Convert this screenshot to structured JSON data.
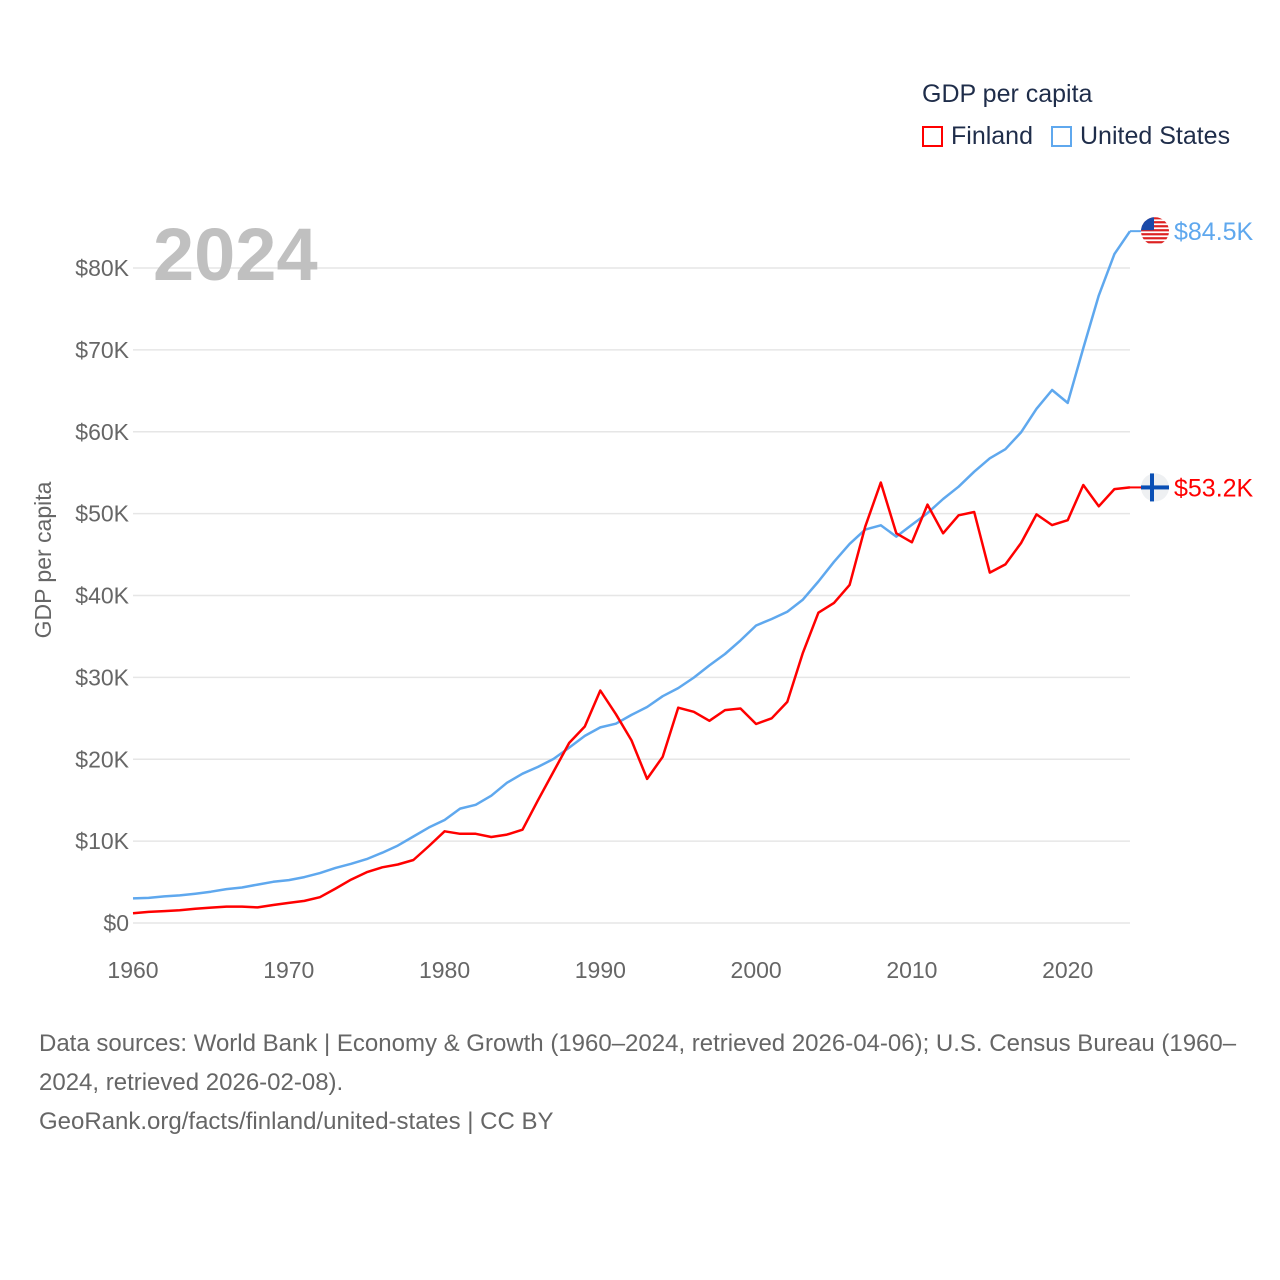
{
  "chart_data": {
    "type": "line",
    "title": "GDP per capita",
    "year_label": "2024",
    "xlabel": "",
    "ylabel": "GDP per capita",
    "xlim": [
      1960,
      2024
    ],
    "ylim": [
      0,
      80000
    ],
    "grid": true,
    "legend_placement": "top-right",
    "x_ticks": [
      "1960",
      "1970",
      "1980",
      "1990",
      "2000",
      "2010",
      "2020"
    ],
    "x_tick_values": [
      1960,
      1970,
      1980,
      1990,
      2000,
      2010,
      2020
    ],
    "y_ticks": [
      "$0",
      "$10K",
      "$20K",
      "$30K",
      "$40K",
      "$50K",
      "$60K",
      "$70K",
      "$80K"
    ],
    "y_tick_values": [
      0,
      10000,
      20000,
      30000,
      40000,
      50000,
      60000,
      70000,
      80000
    ],
    "x": [
      1960,
      1961,
      1962,
      1963,
      1964,
      1965,
      1966,
      1967,
      1968,
      1969,
      1970,
      1971,
      1972,
      1973,
      1974,
      1975,
      1976,
      1977,
      1978,
      1979,
      1980,
      1981,
      1982,
      1983,
      1984,
      1985,
      1986,
      1987,
      1988,
      1989,
      1990,
      1991,
      1992,
      1993,
      1994,
      1995,
      1996,
      1997,
      1998,
      1999,
      2000,
      2001,
      2002,
      2003,
      2004,
      2005,
      2006,
      2007,
      2008,
      2009,
      2010,
      2011,
      2012,
      2013,
      2014,
      2015,
      2016,
      2017,
      2018,
      2019,
      2020,
      2021,
      2022,
      2023,
      2024
    ],
    "series": [
      {
        "name": "Finland",
        "color": "#ff0000",
        "end_label": "$53.2K",
        "flag": "finland-flag-icon",
        "values": [
          1200,
          1350,
          1450,
          1550,
          1750,
          1880,
          2000,
          2000,
          1900,
          2200,
          2450,
          2700,
          3150,
          4200,
          5300,
          6200,
          6800,
          7150,
          7700,
          9400,
          11200,
          10900,
          10900,
          10500,
          10800,
          11400,
          15000,
          18500,
          22000,
          24000,
          28400,
          25500,
          22300,
          17600,
          20300,
          26300,
          25800,
          24700,
          26000,
          26200,
          24300,
          25000,
          27000,
          33000,
          37900,
          39100,
          41300,
          48400,
          53800,
          47600,
          46500,
          51100,
          47600,
          49800,
          50200,
          42800,
          43800,
          46400,
          49900,
          48600,
          49200,
          53500,
          50900,
          53000,
          53200
        ]
      },
      {
        "name": "United States",
        "color": "#5fa8ee",
        "end_label": "$84.5K",
        "flag": "us-flag-icon",
        "values": [
          3007,
          3067,
          3244,
          3375,
          3574,
          3828,
          4146,
          4336,
          4696,
          5032,
          5234,
          5609,
          6094,
          6726,
          7226,
          7801,
          8592,
          9453,
          10565,
          11674,
          12575,
          13976,
          14434,
          15544,
          17121,
          18237,
          19071,
          20039,
          21417,
          22857,
          23889,
          24342,
          25419,
          26387,
          27695,
          28691,
          29968,
          31459,
          32854,
          34515,
          36330,
          37134,
          38023,
          39496,
          41713,
          44115,
          46299,
          48050,
          48570,
          47195,
          48651,
          50066,
          51784,
          53291,
          55124,
          56763,
          57867,
          59915,
          62805,
          65095,
          63528,
          70219,
          76657,
          81695,
          84500
        ]
      }
    ]
  },
  "legend": {
    "title": "GDP per capita",
    "items": [
      "Finland",
      "United States"
    ]
  },
  "footer": {
    "sources": "Data sources: World Bank | Economy & Growth (1960–2024, retrieved 2026-04-06); U.S. Census Bureau (1960–2024, retrieved 2026-02-08).",
    "credit": "GeoRank.org/facts/finland/united-states | CC BY"
  }
}
